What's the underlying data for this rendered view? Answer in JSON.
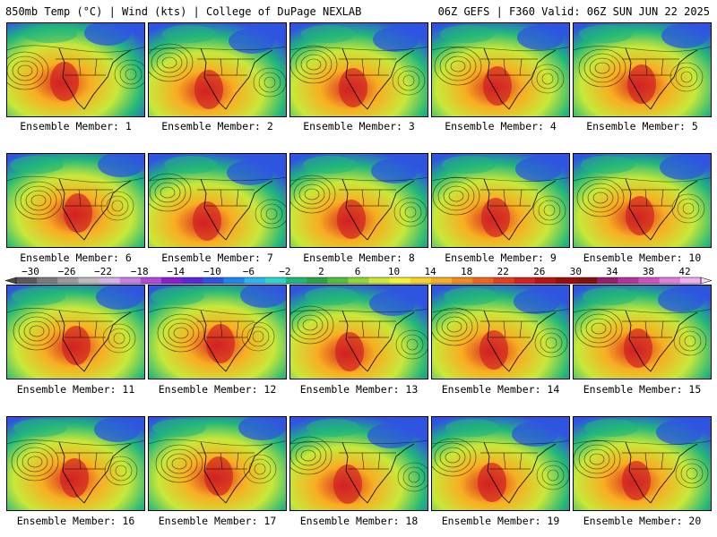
{
  "header": {
    "left": "850mb Temp (°C) | Wind (kts) | College of DuPage NEXLAB",
    "right": "06Z GEFS | F360 Valid: 06Z SUN JUN 22 2025"
  },
  "members": [
    "Ensemble Member: 1",
    "Ensemble Member: 2",
    "Ensemble Member: 3",
    "Ensemble Member: 4",
    "Ensemble Member: 5",
    "Ensemble Member: 6",
    "Ensemble Member: 7",
    "Ensemble Member: 8",
    "Ensemble Member: 9",
    "Ensemble Member: 10",
    "Ensemble Member: 11",
    "Ensemble Member: 12",
    "Ensemble Member: 13",
    "Ensemble Member: 14",
    "Ensemble Member: 15",
    "Ensemble Member: 16",
    "Ensemble Member: 17",
    "Ensemble Member: 18",
    "Ensemble Member: 19",
    "Ensemble Member: 20"
  ],
  "colorbar": {
    "labels": [
      "−30",
      "−26",
      "−22",
      "−18",
      "−14",
      "−10",
      "−6",
      "−2",
      "2",
      "6",
      "10",
      "14",
      "18",
      "22",
      "26",
      "30",
      "34",
      "38",
      "42"
    ],
    "colors": [
      "#5a5a5a",
      "#7a7a7a",
      "#9a9a9a",
      "#bbbbbb",
      "#d6b3e6",
      "#c77fe0",
      "#b04bd6",
      "#8b1fd0",
      "#5a28d8",
      "#2f55e0",
      "#1f86ee",
      "#2ab6ee",
      "#2fd6c8",
      "#22b77a",
      "#2aa24a",
      "#52bf3a",
      "#8fd63a",
      "#c8e83a",
      "#f2f23a",
      "#f8d22a",
      "#f8ae22",
      "#f48a1e",
      "#ec661e",
      "#e2401e",
      "#d22222",
      "#b81616",
      "#9c0e0e",
      "#841010",
      "#96206c",
      "#b4329a",
      "#cd52c0",
      "#e07fda",
      "#eeb0ee"
    ]
  },
  "palette": {
    "cold": "#2f55e0",
    "cool": "#22b77a",
    "mild": "#c8e83a",
    "warm": "#f8ae22",
    "hot": "#d22222",
    "outline": "#000000"
  }
}
